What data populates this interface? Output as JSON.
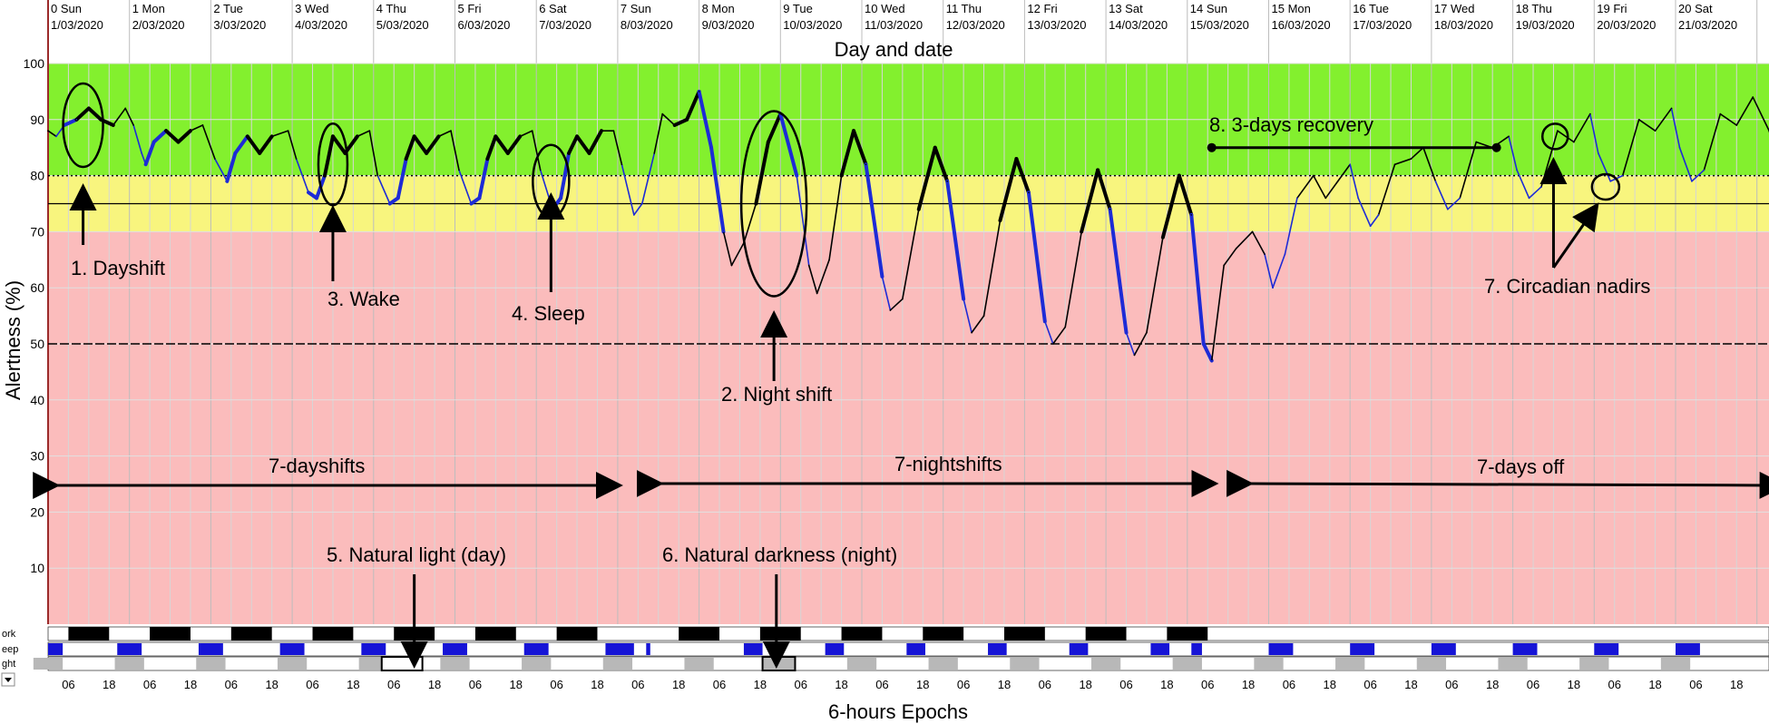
{
  "chart_data": {
    "type": "line",
    "title": "Day and date",
    "xlabel": "6-hours Epochs",
    "ylabel": "Alertness (%)",
    "ylim": [
      0,
      100
    ],
    "yticks": [
      10,
      20,
      30,
      40,
      50,
      60,
      70,
      80,
      90,
      100
    ],
    "zones": [
      {
        "from": 80,
        "to": 100,
        "color": "#83f02e"
      },
      {
        "from": 70,
        "to": 80,
        "color": "#f8f57e"
      },
      {
        "from": 0,
        "to": 70,
        "color": "#fbbcbc"
      }
    ],
    "reference_lines": [
      {
        "y": 80,
        "style": "dotted"
      },
      {
        "y": 75,
        "style": "solid"
      },
      {
        "y": 50,
        "style": "dashed"
      }
    ],
    "days": [
      {
        "day": "0 Sun",
        "date": "1/03/2020"
      },
      {
        "day": "1 Mon",
        "date": "2/03/2020"
      },
      {
        "day": "2 Tue",
        "date": "3/03/2020"
      },
      {
        "day": "3 Wed",
        "date": "4/03/2020"
      },
      {
        "day": "4 Thu",
        "date": "5/03/2020"
      },
      {
        "day": "5 Fri",
        "date": "6/03/2020"
      },
      {
        "day": "6 Sat",
        "date": "7/03/2020"
      },
      {
        "day": "7 Sun",
        "date": "8/03/2020"
      },
      {
        "day": "8 Mon",
        "date": "9/03/2020"
      },
      {
        "day": "9 Tue",
        "date": "10/03/2020"
      },
      {
        "day": "10 Wed",
        "date": "11/03/2020"
      },
      {
        "day": "11 Thu",
        "date": "12/03/2020"
      },
      {
        "day": "12 Fri",
        "date": "13/03/2020"
      },
      {
        "day": "13 Sat",
        "date": "14/03/2020"
      },
      {
        "day": "14 Sun",
        "date": "15/03/2020"
      },
      {
        "day": "15 Mon",
        "date": "16/03/2020"
      },
      {
        "day": "16 Tue",
        "date": "17/03/2020"
      },
      {
        "day": "17 Wed",
        "date": "18/03/2020"
      },
      {
        "day": "18 Thu",
        "date": "19/03/2020"
      },
      {
        "day": "19 Fri",
        "date": "20/03/2020"
      },
      {
        "day": "20 Sat",
        "date": "21/03/2020"
      }
    ],
    "x_tick_labels": [
      "06",
      "18"
    ],
    "series": [
      {
        "values": [
          [
            0.0,
            88
          ],
          [
            0.1,
            87
          ],
          [
            0.2,
            89
          ],
          [
            0.35,
            90
          ],
          [
            0.5,
            92
          ],
          [
            0.65,
            90
          ],
          [
            0.8,
            89
          ],
          [
            0.95,
            92
          ],
          [
            1.05,
            89
          ],
          [
            1.15,
            84
          ],
          [
            1.2,
            82
          ],
          [
            1.3,
            86
          ],
          [
            1.45,
            88
          ],
          [
            1.6,
            86
          ],
          [
            1.75,
            88
          ],
          [
            1.9,
            89
          ],
          [
            2.05,
            83
          ],
          [
            2.2,
            79
          ],
          [
            2.3,
            84
          ],
          [
            2.45,
            87
          ],
          [
            2.6,
            84
          ],
          [
            2.75,
            87
          ],
          [
            2.95,
            88
          ],
          [
            3.05,
            83
          ],
          [
            3.2,
            77
          ],
          [
            3.3,
            76
          ],
          [
            3.4,
            80
          ],
          [
            3.5,
            87
          ],
          [
            3.65,
            84
          ],
          [
            3.8,
            87
          ],
          [
            3.95,
            88
          ],
          [
            4.05,
            80
          ],
          [
            4.2,
            75
          ],
          [
            4.3,
            76
          ],
          [
            4.4,
            83
          ],
          [
            4.5,
            87
          ],
          [
            4.65,
            84
          ],
          [
            4.8,
            87
          ],
          [
            4.95,
            88
          ],
          [
            5.05,
            81
          ],
          [
            5.2,
            75
          ],
          [
            5.3,
            76
          ],
          [
            5.4,
            83
          ],
          [
            5.5,
            87
          ],
          [
            5.65,
            84
          ],
          [
            5.8,
            87
          ],
          [
            5.95,
            88
          ],
          [
            6.05,
            81
          ],
          [
            6.2,
            74
          ],
          [
            6.3,
            76
          ],
          [
            6.4,
            84
          ],
          [
            6.5,
            87
          ],
          [
            6.65,
            84
          ],
          [
            6.8,
            88
          ],
          [
            6.95,
            88
          ],
          [
            7.05,
            82
          ],
          [
            7.2,
            73
          ],
          [
            7.3,
            75
          ],
          [
            7.45,
            84
          ],
          [
            7.55,
            91
          ],
          [
            7.7,
            89
          ],
          [
            7.85,
            90
          ],
          [
            8.0,
            95
          ],
          [
            8.15,
            85
          ],
          [
            8.3,
            70
          ],
          [
            8.4,
            64
          ],
          [
            8.55,
            68
          ],
          [
            8.7,
            75
          ],
          [
            8.85,
            86
          ],
          [
            9.0,
            91
          ],
          [
            9.2,
            80
          ],
          [
            9.35,
            64
          ],
          [
            9.45,
            59
          ],
          [
            9.6,
            65
          ],
          [
            9.75,
            80
          ],
          [
            9.9,
            88
          ],
          [
            10.05,
            82
          ],
          [
            10.25,
            62
          ],
          [
            10.35,
            56
          ],
          [
            10.5,
            58
          ],
          [
            10.7,
            74
          ],
          [
            10.9,
            85
          ],
          [
            11.05,
            79
          ],
          [
            11.25,
            58
          ],
          [
            11.35,
            52
          ],
          [
            11.5,
            55
          ],
          [
            11.7,
            72
          ],
          [
            11.9,
            83
          ],
          [
            12.05,
            77
          ],
          [
            12.25,
            54
          ],
          [
            12.35,
            50
          ],
          [
            12.5,
            53
          ],
          [
            12.7,
            70
          ],
          [
            12.9,
            81
          ],
          [
            13.05,
            74
          ],
          [
            13.25,
            52
          ],
          [
            13.35,
            48
          ],
          [
            13.5,
            52
          ],
          [
            13.7,
            69
          ],
          [
            13.9,
            80
          ],
          [
            14.05,
            73
          ],
          [
            14.2,
            50
          ],
          [
            14.3,
            47
          ],
          [
            14.45,
            64
          ],
          [
            14.6,
            67
          ],
          [
            14.8,
            70
          ],
          [
            14.95,
            66
          ],
          [
            15.05,
            60
          ],
          [
            15.2,
            66
          ],
          [
            15.35,
            76
          ],
          [
            15.55,
            80
          ],
          [
            15.7,
            76
          ],
          [
            15.85,
            79
          ],
          [
            16.0,
            82
          ],
          [
            16.1,
            76
          ],
          [
            16.25,
            71
          ],
          [
            16.35,
            73
          ],
          [
            16.55,
            82
          ],
          [
            16.75,
            83
          ],
          [
            16.9,
            85
          ],
          [
            17.05,
            79
          ],
          [
            17.2,
            74
          ],
          [
            17.35,
            76
          ],
          [
            17.55,
            86
          ],
          [
            17.75,
            85
          ],
          [
            17.95,
            87
          ],
          [
            18.05,
            81
          ],
          [
            18.2,
            76
          ],
          [
            18.35,
            78
          ],
          [
            18.55,
            88
          ],
          [
            18.75,
            86
          ],
          [
            18.95,
            91
          ],
          [
            19.05,
            84
          ],
          [
            19.2,
            79
          ],
          [
            19.35,
            80
          ],
          [
            19.55,
            90
          ],
          [
            19.75,
            88
          ],
          [
            19.95,
            92
          ],
          [
            20.05,
            85
          ],
          [
            20.2,
            79
          ],
          [
            20.35,
            81
          ],
          [
            20.55,
            91
          ],
          [
            20.75,
            89
          ],
          [
            20.95,
            94
          ],
          [
            21.15,
            88
          ],
          [
            21.3,
            80
          ]
        ]
      }
    ],
    "sleep_intervals": [
      [
        0.1,
        0.35
      ],
      [
        1.1,
        1.38
      ],
      [
        2.1,
        2.38
      ],
      [
        3.1,
        3.38
      ],
      [
        4.1,
        4.38
      ],
      [
        5.1,
        5.38
      ],
      [
        6.1,
        6.38
      ],
      [
        7.1,
        7.38
      ],
      [
        8.05,
        8.3
      ],
      [
        9.1,
        9.3
      ],
      [
        10.1,
        10.3
      ],
      [
        11.1,
        11.3
      ],
      [
        12.1,
        12.3
      ],
      [
        13.1,
        13.3
      ],
      [
        14.1,
        14.3
      ],
      [
        15.0,
        15.35
      ],
      [
        16.0,
        16.35
      ],
      [
        17.0,
        17.35
      ],
      [
        18.0,
        18.35
      ],
      [
        19.0,
        19.35
      ],
      [
        20.0,
        20.35
      ]
    ],
    "work_blocks": [
      [
        0.25,
        0.75
      ],
      [
        1.25,
        1.75
      ],
      [
        2.25,
        2.75
      ],
      [
        3.25,
        3.75
      ],
      [
        4.25,
        4.75
      ],
      [
        5.25,
        5.75
      ],
      [
        6.25,
        6.75
      ],
      [
        7.75,
        8.25
      ],
      [
        8.75,
        9.25
      ],
      [
        9.75,
        10.25
      ],
      [
        10.75,
        11.25
      ],
      [
        11.75,
        12.25
      ],
      [
        12.75,
        13.25
      ],
      [
        13.75,
        14.25
      ]
    ],
    "sleep_row_blocks": [
      [
        0.0,
        0.18
      ],
      [
        0.85,
        1.15
      ],
      [
        1.85,
        2.15
      ],
      [
        2.85,
        3.15
      ],
      [
        3.85,
        4.15
      ],
      [
        4.85,
        5.15
      ],
      [
        5.85,
        6.15
      ],
      [
        6.85,
        7.2
      ],
      [
        7.35,
        7.4
      ],
      [
        8.55,
        8.78
      ],
      [
        9.55,
        9.78
      ],
      [
        10.55,
        10.78
      ],
      [
        11.55,
        11.78
      ],
      [
        12.55,
        12.78
      ],
      [
        13.55,
        13.78
      ],
      [
        14.05,
        14.18
      ],
      [
        15.0,
        15.3
      ],
      [
        16.0,
        16.3
      ],
      [
        17.0,
        17.3
      ],
      [
        18.0,
        18.3
      ],
      [
        19.0,
        19.3
      ],
      [
        20.0,
        20.3
      ]
    ],
    "row_labels": [
      "ork",
      "eep",
      "ght"
    ],
    "annotations": {
      "dayshift": "1. Dayshift",
      "nightshift": "2. Night shift",
      "wake": "3. Wake",
      "sleep": "4. Sleep",
      "natural_light": "5. Natural light (day)",
      "natural_darkness": "6. Natural darkness (night)",
      "circadian": "7. Circadian nadirs",
      "recovery": "8. 3-days recovery",
      "dayshifts_span": "7-dayshifts",
      "nightshifts_span": "7-nightshifts",
      "daysoff_span": "7-days off"
    }
  }
}
